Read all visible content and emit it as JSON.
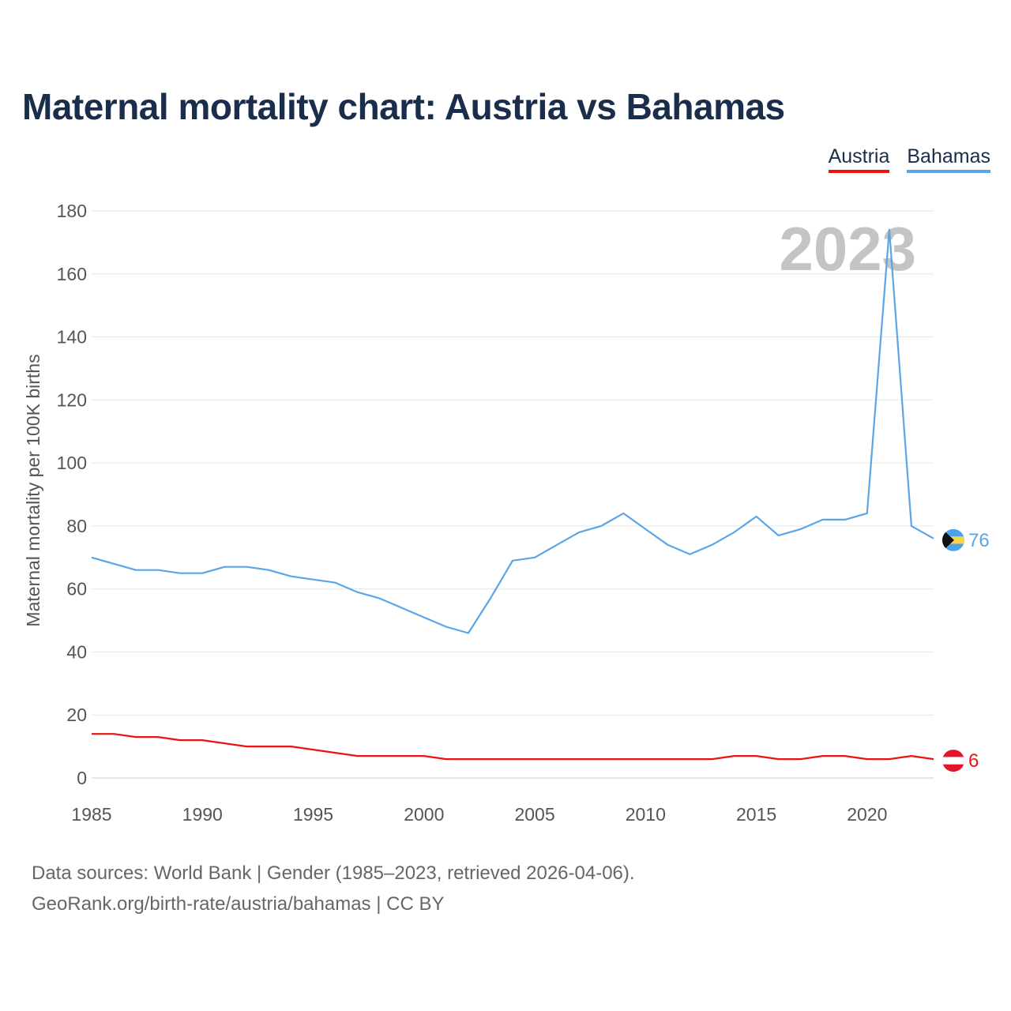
{
  "title": "Maternal mortality chart: Austria vs Bahamas",
  "legend": [
    {
      "label": "Austria",
      "color": "#ee1111"
    },
    {
      "label": "Bahamas",
      "color": "#5ba5e6"
    }
  ],
  "footer": {
    "line1": "Data sources: World Bank | Gender (1985–2023, retrieved 2026-04-06).",
    "line2": "GeoRank.org/birth-rate/austria/bahamas | CC BY"
  },
  "chart_data": {
    "type": "line",
    "title": "Maternal mortality chart: Austria vs Bahamas",
    "ylabel": "Maternal mortality per 100K births",
    "xlabel": "",
    "year_label": "2023",
    "xlim": [
      1985,
      2023
    ],
    "ylim": [
      0,
      180
    ],
    "x_ticks": [
      1985,
      1990,
      1995,
      2000,
      2005,
      2010,
      2015,
      2020
    ],
    "y_ticks": [
      0,
      20,
      40,
      60,
      80,
      100,
      120,
      140,
      160,
      180
    ],
    "x": [
      1985,
      1986,
      1987,
      1988,
      1989,
      1990,
      1991,
      1992,
      1993,
      1994,
      1995,
      1996,
      1997,
      1998,
      1999,
      2000,
      2001,
      2002,
      2003,
      2004,
      2005,
      2006,
      2007,
      2008,
      2009,
      2010,
      2011,
      2012,
      2013,
      2014,
      2015,
      2016,
      2017,
      2018,
      2019,
      2020,
      2021,
      2022,
      2023
    ],
    "series": [
      {
        "name": "Bahamas",
        "color": "#5ba5e6",
        "end_label": "76",
        "flag": "bahamas-flag",
        "values": [
          70,
          68,
          66,
          66,
          65,
          65,
          67,
          67,
          66,
          64,
          63,
          62,
          59,
          57,
          54,
          51,
          48,
          46,
          57,
          69,
          70,
          74,
          78,
          80,
          84,
          79,
          74,
          71,
          74,
          78,
          83,
          77,
          79,
          82,
          82,
          84,
          174,
          80,
          76
        ]
      },
      {
        "name": "Austria",
        "color": "#ee1111",
        "end_label": "6",
        "flag": "austria-flag",
        "values": [
          14,
          14,
          13,
          13,
          12,
          12,
          11,
          10,
          10,
          10,
          9,
          8,
          7,
          7,
          7,
          7,
          6,
          6,
          6,
          6,
          6,
          6,
          6,
          6,
          6,
          6,
          6,
          6,
          6,
          7,
          7,
          6,
          6,
          7,
          7,
          6,
          6,
          7,
          6
        ]
      }
    ]
  }
}
